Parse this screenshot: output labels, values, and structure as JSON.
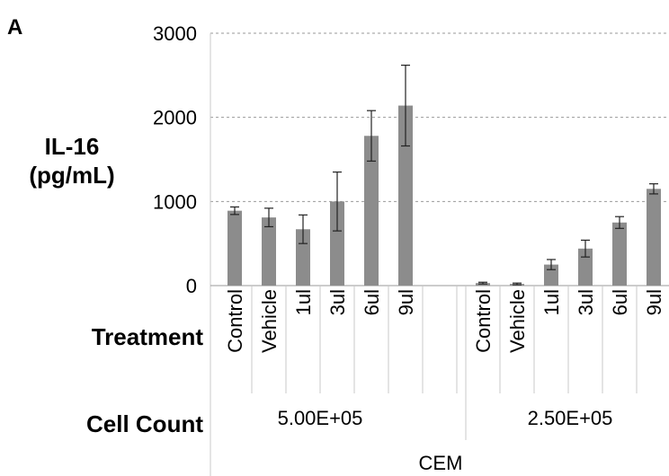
{
  "panel_label": "A",
  "chart_data": {
    "type": "bar",
    "ylabel_line1": "IL-16",
    "ylabel_line2": "(pg/mL)",
    "ylim": [
      0,
      3000
    ],
    "yticks": [
      "0",
      "1000",
      "2000",
      "3000"
    ],
    "grid": true,
    "bar_color": "#8c8c8c",
    "row_labels": {
      "treatment": "Treatment",
      "cell_count": "Cell Count"
    },
    "group_title": "CEM",
    "groups": [
      {
        "cell_count": "5.00E+05",
        "categories": [
          "Control",
          "Vehicle",
          "1ul",
          "3ul",
          "6ul",
          "9ul"
        ],
        "values": [
          890,
          810,
          670,
          1000,
          1780,
          2140
        ],
        "errors": [
          45,
          110,
          170,
          350,
          300,
          480
        ]
      },
      {
        "cell_count": "2.50E+05",
        "categories": [
          "Control",
          "Vehicle",
          "1ul",
          "3ul",
          "6ul",
          "9ul"
        ],
        "values": [
          30,
          20,
          250,
          440,
          750,
          1150
        ],
        "errors": [
          10,
          10,
          60,
          100,
          70,
          60
        ]
      }
    ]
  }
}
